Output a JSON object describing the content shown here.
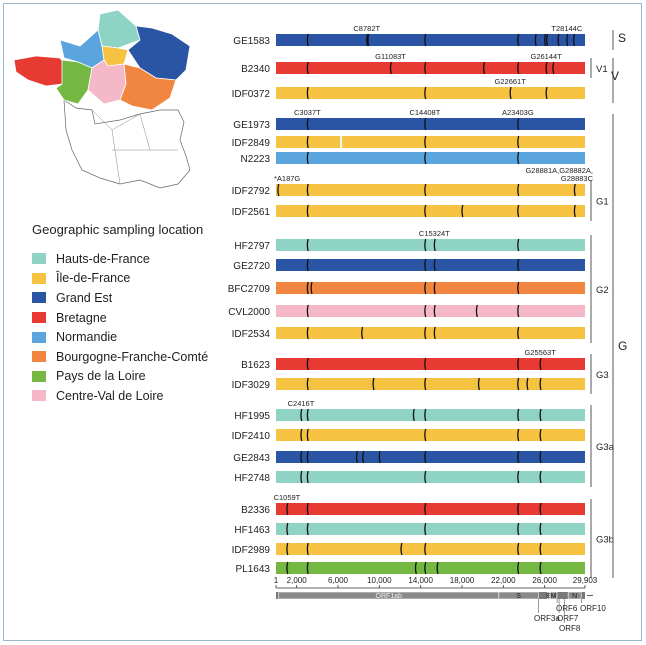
{
  "regions": {
    "hdf": {
      "name": "Hauts-de-France",
      "color": "#8fd3c4"
    },
    "idf": {
      "name": "Île-de-France",
      "color": "#f5c242"
    },
    "ge": {
      "name": "Grand Est",
      "color": "#2a55a4"
    },
    "bre": {
      "name": "Bretagne",
      "color": "#e63a32"
    },
    "nor": {
      "name": "Normandie",
      "color": "#5aa5de"
    },
    "bfc": {
      "name": "Bourgogne-Franche-Comté",
      "color": "#f08640"
    },
    "pdl": {
      "name": "Pays de la Loire",
      "color": "#74b843"
    },
    "cvl": {
      "name": "Centre-Val de Loire",
      "color": "#f4b8c8"
    }
  },
  "legend": {
    "title": "Geographic sampling location",
    "order": [
      "hdf",
      "idf",
      "ge",
      "bre",
      "nor",
      "bfc",
      "pdl",
      "cvl"
    ]
  },
  "genome": {
    "start": 1,
    "end": 29903,
    "ticks": [
      1,
      2000,
      6000,
      10000,
      14000,
      18000,
      22000,
      26000,
      29903
    ],
    "tick_labels": [
      "1",
      "2,000",
      "6,000",
      "10,000",
      "14,000",
      "18,000",
      "22,000",
      "26,000",
      "29,903"
    ]
  },
  "genes": [
    {
      "label": "ORF1ab",
      "start": 266,
      "end": 21555
    },
    {
      "label": "S",
      "start": 21563,
      "end": 25384
    },
    {
      "label": "E",
      "start": 26245,
      "end": 26472
    },
    {
      "label": "M",
      "start": 26523,
      "end": 27191
    },
    {
      "label": "N",
      "start": 28274,
      "end": 29533
    }
  ],
  "gene_callouts": [
    "ORF3a",
    "ORF6",
    "ORF7",
    "ORF8",
    "ORF10"
  ],
  "samples": [
    {
      "id": "GE1583",
      "region": "ge",
      "mutations": [
        3037,
        8782,
        8900,
        14408,
        23403,
        25100,
        26000,
        26200,
        27300,
        28144,
        28800
      ]
    },
    {
      "id": "B2340",
      "region": "bre",
      "mutations": [
        3037,
        11083,
        14408,
        20100,
        23403,
        26144,
        26800
      ]
    },
    {
      "id": "IDF0372",
      "region": "idf",
      "mutations": [
        3037,
        14408,
        22661,
        26144
      ]
    },
    {
      "id": "GE1973",
      "region": "ge",
      "mutations": [
        3037,
        14408,
        23403
      ]
    },
    {
      "id": "IDF2849",
      "region": "idf",
      "mutations": [
        3037,
        14408,
        23403
      ],
      "gaps": [
        [
          6200,
          6400
        ]
      ]
    },
    {
      "id": "N2223",
      "region": "nor",
      "mutations": [
        3037,
        14408,
        23403
      ]
    },
    {
      "id": "IDF2792",
      "region": "idf",
      "mutations": [
        187,
        3037,
        14408,
        23403,
        28881
      ]
    },
    {
      "id": "IDF2561",
      "region": "idf",
      "mutations": [
        3037,
        14408,
        18000,
        23403,
        28881
      ]
    },
    {
      "id": "HF2797",
      "region": "hdf",
      "mutations": [
        3037,
        14408,
        15324,
        23403
      ]
    },
    {
      "id": "GE2720",
      "region": "ge",
      "mutations": [
        3037,
        14408,
        15324,
        23403
      ]
    },
    {
      "id": "BFC2709",
      "region": "bfc",
      "mutations": [
        3037,
        3400,
        14408,
        15324,
        23403
      ]
    },
    {
      "id": "CVL2000",
      "region": "cvl",
      "mutations": [
        3037,
        14408,
        15324,
        19400,
        23403
      ]
    },
    {
      "id": "IDF2534",
      "region": "idf",
      "mutations": [
        3037,
        8300,
        14408,
        15324,
        23403
      ]
    },
    {
      "id": "B1623",
      "region": "bre",
      "mutations": [
        3037,
        14408,
        23403,
        25563
      ]
    },
    {
      "id": "IDF3029",
      "region": "idf",
      "mutations": [
        3037,
        9400,
        14408,
        19600,
        23403,
        24300,
        25563
      ]
    },
    {
      "id": "HF1995",
      "region": "hdf",
      "mutations": [
        2416,
        3037,
        13300,
        14408,
        23403,
        25563
      ]
    },
    {
      "id": "IDF2410",
      "region": "idf",
      "mutations": [
        2416,
        3037,
        14408,
        23403,
        25563
      ]
    },
    {
      "id": "GE2843",
      "region": "ge",
      "mutations": [
        2416,
        3037,
        7800,
        8400,
        10000,
        14408,
        23403,
        25563
      ]
    },
    {
      "id": "HF2748",
      "region": "hdf",
      "mutations": [
        2416,
        3037,
        14408,
        23403,
        25563
      ]
    },
    {
      "id": "B2336",
      "region": "bre",
      "mutations": [
        1059,
        3037,
        14408,
        23403,
        25563
      ]
    },
    {
      "id": "HF1463",
      "region": "hdf",
      "mutations": [
        1059,
        3037,
        14408,
        23403,
        25563
      ]
    },
    {
      "id": "IDF2989",
      "region": "idf",
      "mutations": [
        1059,
        3037,
        12100,
        14408,
        23403,
        25563
      ]
    },
    {
      "id": "PL1643",
      "region": "pdl",
      "mutations": [
        1059,
        3037,
        13500,
        14408,
        15600,
        23403,
        25563
      ]
    }
  ],
  "mutation_labels": [
    {
      "text": "C8782T",
      "row": "GE1583",
      "pos": 8782
    },
    {
      "text": "T28144C",
      "row": "GE1583",
      "pos": 28144
    },
    {
      "text": "G11083T",
      "row": "B2340",
      "pos": 11083
    },
    {
      "text": "G26144T",
      "row": "B2340",
      "pos": 26144
    },
    {
      "text": "G22661T",
      "row": "IDF0372",
      "pos": 22661
    },
    {
      "text": "C3037T",
      "row": "GE1973",
      "pos": 3037
    },
    {
      "text": "C14408T",
      "row": "GE1973",
      "pos": 14408
    },
    {
      "text": "A23403G",
      "row": "GE1973",
      "pos": 23403
    },
    {
      "text": "*A187G",
      "row": "IDF2792",
      "pos": 187
    },
    {
      "text": "G28881A,G28882A,",
      "row": "IDF2792",
      "pos": 28881,
      "line2": "G28883C"
    },
    {
      "text": "C15324T",
      "row": "HF2797",
      "pos": 15324
    },
    {
      "text": "G25563T",
      "row": "B1623",
      "pos": 25563
    },
    {
      "text": "C2416T",
      "row": "HF1995",
      "pos": 2416
    },
    {
      "text": "C1059T",
      "row": "B2336",
      "pos": 1059
    }
  ],
  "clades": [
    {
      "label": "S",
      "from": "GE1583",
      "to": "GE1583",
      "level": 2
    },
    {
      "label": "V1",
      "from": "B2340",
      "to": "B2340",
      "level": 1
    },
    {
      "label": "V",
      "from": "B2340",
      "to": "IDF0372",
      "level": 2
    },
    {
      "label": "G1",
      "from": "IDF2792",
      "to": "IDF2561",
      "level": 1
    },
    {
      "label": "G2",
      "from": "HF2797",
      "to": "IDF2534",
      "level": 1
    },
    {
      "label": "G3",
      "from": "B1623",
      "to": "IDF3029",
      "level": 1
    },
    {
      "label": "G3a",
      "from": "HF1995",
      "to": "HF2748",
      "level": 1
    },
    {
      "label": "G3b",
      "from": "B2336",
      "to": "PL1643",
      "level": 1
    },
    {
      "label": "G",
      "from": "GE1973",
      "to": "PL1643",
      "level": 2
    }
  ]
}
